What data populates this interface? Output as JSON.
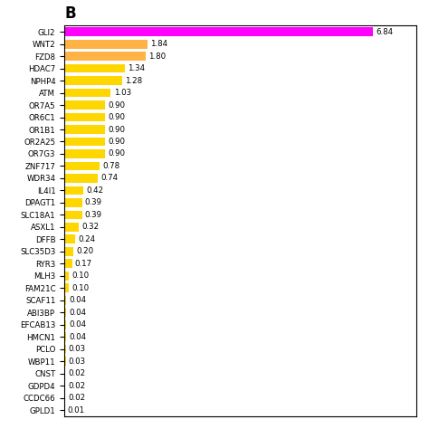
{
  "chart_data": {
    "type": "bar",
    "orientation": "horizontal",
    "title": "B",
    "categories": [
      "GLI2",
      "WNT2",
      "FZD8",
      "HDAC7",
      "NPHP4",
      "ATM",
      "OR7A5",
      "OR6C1",
      "OR1B1",
      "OR2A25",
      "OR7G3",
      "ZNF717",
      "WDR34",
      "IL4I1",
      "DPAGT1",
      "SLC18A1",
      "ASXL1",
      "DFFB",
      "SLC35D3",
      "RYR3",
      "MLH3",
      "FAM21C",
      "SCAF11",
      "ABI3BP",
      "EFCAB13",
      "HMCN1",
      "PCLO",
      "WBP11",
      "CNST",
      "GDPD4",
      "CCDC66",
      "GPLD1"
    ],
    "values": [
      6.84,
      1.84,
      1.8,
      1.34,
      1.28,
      1.03,
      0.9,
      0.9,
      0.9,
      0.9,
      0.9,
      0.78,
      0.74,
      0.42,
      0.39,
      0.39,
      0.32,
      0.24,
      0.2,
      0.17,
      0.1,
      0.1,
      0.04,
      0.04,
      0.04,
      0.04,
      0.03,
      0.03,
      0.02,
      0.02,
      0.02,
      0.01
    ],
    "value_labels": [
      "6.84",
      "1.84",
      "1.80",
      "1.34",
      "1.28",
      "1.03",
      "0.90",
      "0.90",
      "0.90",
      "0.90",
      "0.90",
      "0.78",
      "0.74",
      "0.42",
      "0.39",
      "0.39",
      "0.32",
      "0.24",
      "0.20",
      "0.17",
      "0.10",
      "0.10",
      "0.04",
      "0.04",
      "0.04",
      "0.04",
      "0.03",
      "0.03",
      "0.02",
      "0.02",
      "0.02",
      "0.01"
    ],
    "colors": [
      "#FF00FF",
      "#FFB347",
      "#FFB347",
      "#FFD700",
      "#FFD700",
      "#FFD700",
      "#FFD700",
      "#FFD700",
      "#FFD700",
      "#FFD700",
      "#FFD700",
      "#FFD700",
      "#FFD700",
      "#FFD700",
      "#FFD700",
      "#FFD700",
      "#FFD700",
      "#FFD700",
      "#FFD700",
      "#FFD700",
      "#FFD700",
      "#FFD700",
      "#FFD700",
      "#FFD700",
      "#FFD700",
      "#FFD700",
      "#FFD700",
      "#FFD700",
      "#FFD700",
      "#FFD700",
      "#FFD700",
      "#FFD700"
    ],
    "xlim": [
      0,
      7.8
    ],
    "data_labels": true,
    "tick_labels": "y",
    "grid": false
  }
}
